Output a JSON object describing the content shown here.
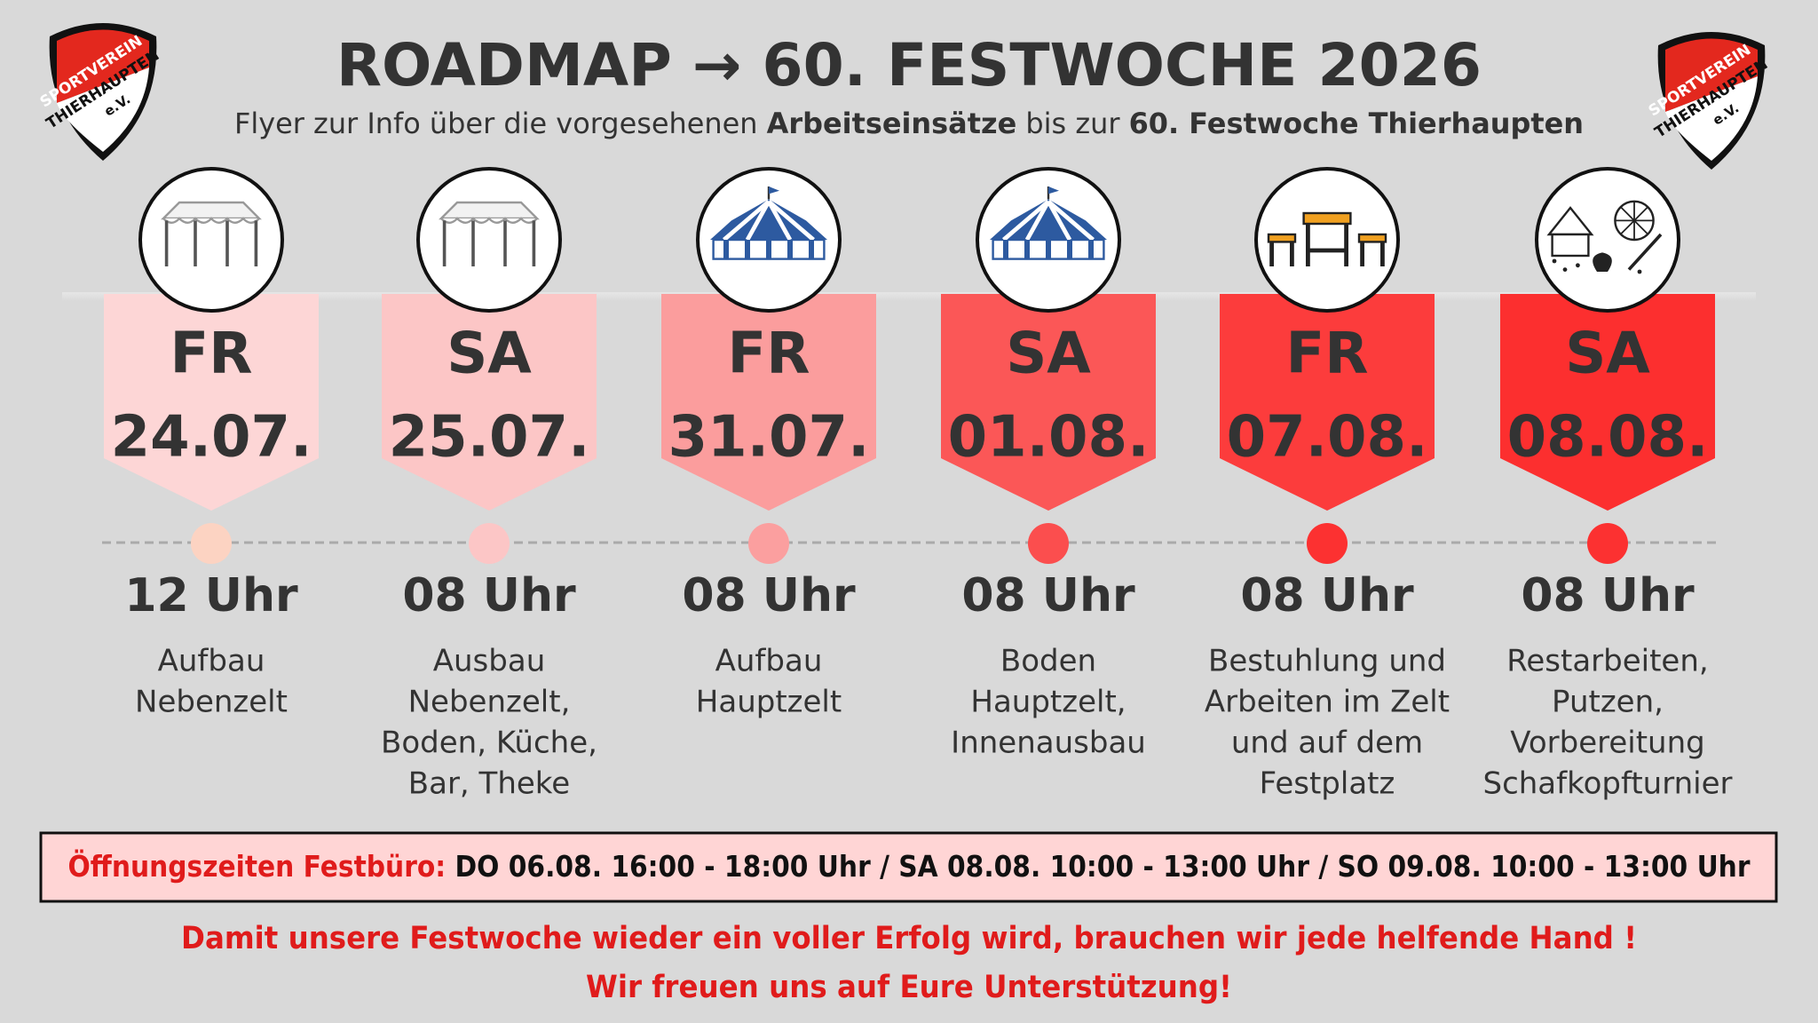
{
  "header": {
    "title": "ROADMAP → 60. FESTWOCHE 2026",
    "subtitle": [
      "Flyer zur Info über die vorgesehenen ",
      "Arbeitseinsätze",
      " bis zur ",
      "60. Festwoche Thierhaupten"
    ],
    "logo": [
      "SPORTVEREIN",
      "THIERHAUPTEN",
      "e.V."
    ]
  },
  "events": [
    {
      "day": "FR",
      "date": "24.07.",
      "time": "12 Uhr",
      "description": [
        "Aufbau",
        "Nebenzelt"
      ]
    },
    {
      "day": "SA",
      "date": "25.07.",
      "time": "08 Uhr",
      "description": [
        "Ausbau",
        "Nebenzelt,",
        "Boden, Küche,",
        "Bar, Theke"
      ]
    },
    {
      "day": "FR",
      "date": "31.07.",
      "time": "08 Uhr",
      "description": [
        "Aufbau",
        "Hauptzelt"
      ]
    },
    {
      "day": "SA",
      "date": "01.08.",
      "time": "08 Uhr",
      "description": [
        "Boden",
        "Hauptzelt,",
        "Innenausbau"
      ]
    },
    {
      "day": "FR",
      "date": "07.08.",
      "time": "08 Uhr",
      "description": [
        "Bestuhlung und",
        "Arbeiten im Zelt",
        "und auf dem",
        "Festplatz"
      ]
    },
    {
      "day": "SA",
      "date": "08.08.",
      "time": "08 Uhr",
      "description": [
        "Restarbeiten,",
        "Putzen,",
        "Vorbereitung",
        "Schafkopfturnier"
      ]
    }
  ],
  "notice": {
    "label": "Öffnungszeiten Festbüro:",
    "text": "DO 06.08. 16:00 - 18:00 Uhr / SA 08.08. 10:00 - 13:00 Uhr / SO 09.08. 10:00 - 13:00 Uhr"
  },
  "footer": [
    "Damit unsere Festwoche wieder ein voller Erfolg wird, brauchen wir jede helfende Hand !",
    "Wir freuen uns auf Eure Unterstützung!"
  ]
}
